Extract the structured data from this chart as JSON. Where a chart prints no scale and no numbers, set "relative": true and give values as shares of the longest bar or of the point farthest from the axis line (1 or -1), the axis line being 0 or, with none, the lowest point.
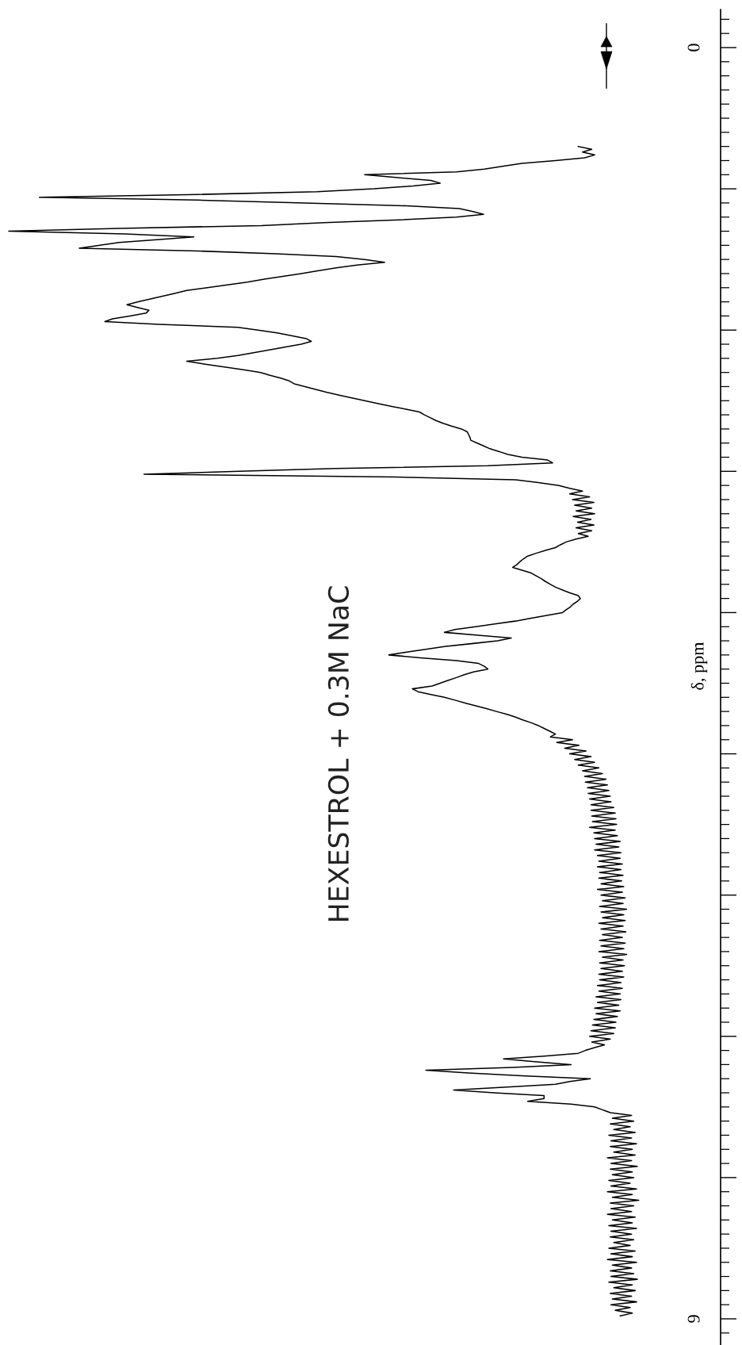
{
  "chart_data": {
    "type": "line",
    "title": "HEXESTROL + 0.3M NaC",
    "ylabel": "δ, ppm",
    "orientation": "horizontal",
    "relative": true,
    "line_style": "solid",
    "tick_labels": "y",
    "categories": [
      "0",
      null,
      null,
      null,
      null,
      null,
      null,
      null,
      null,
      null,
      null,
      null,
      null,
      null,
      null,
      null,
      null,
      null,
      null,
      null,
      null,
      null,
      null,
      null,
      null,
      null,
      null,
      null,
      null,
      null,
      null,
      null,
      null,
      null,
      null,
      null,
      null,
      null,
      null,
      null,
      null,
      null,
      null,
      null,
      null,
      null,
      null,
      null,
      null,
      null,
      null,
      null,
      null,
      null,
      null,
      null,
      null,
      null,
      null,
      null,
      null,
      null,
      null,
      null,
      null,
      null,
      null,
      null,
      null,
      null,
      null,
      null,
      null,
      null,
      null,
      null,
      null,
      null,
      null,
      null,
      null,
      null,
      null,
      null,
      null,
      null,
      null,
      null,
      null,
      null,
      null,
      null,
      null,
      null,
      null,
      null,
      null,
      null,
      null,
      null,
      null,
      null,
      null,
      null,
      null,
      null,
      null,
      null,
      null,
      null,
      null,
      null,
      null,
      null,
      null,
      null,
      null,
      null,
      null,
      null,
      null,
      null,
      null,
      null,
      null,
      null,
      null,
      null,
      null,
      null,
      null,
      null,
      null,
      null,
      null,
      null,
      null,
      null,
      null,
      null,
      null,
      null,
      null,
      null,
      null,
      null,
      null,
      null,
      null,
      null,
      null,
      null,
      null,
      null,
      null,
      null,
      null,
      null,
      null,
      null,
      null,
      null,
      null,
      null,
      null,
      null,
      null,
      null,
      null,
      null,
      null,
      null,
      null,
      null,
      null,
      null,
      null,
      null,
      null,
      null,
      null,
      null,
      null,
      null,
      null,
      null,
      null,
      null,
      null,
      null,
      null,
      null,
      null,
      null,
      null,
      null,
      null,
      null,
      null,
      null,
      null,
      null,
      null,
      null,
      null,
      null,
      null,
      null,
      null,
      null,
      null,
      null,
      null,
      null,
      null,
      null,
      null,
      null,
      null,
      null,
      null,
      null,
      null,
      null,
      null,
      null,
      null,
      null,
      null,
      null,
      null,
      null,
      null,
      null,
      null,
      null,
      null,
      null,
      null,
      null,
      null,
      null,
      null,
      null,
      null,
      null,
      null,
      null,
      null,
      null,
      null,
      null,
      null,
      null,
      null,
      null,
      null,
      null,
      null,
      null,
      null,
      null,
      null,
      null,
      null,
      null,
      null,
      null,
      null,
      null,
      null,
      null,
      null,
      null,
      null,
      null,
      null,
      null,
      null,
      null,
      null,
      null,
      null,
      null,
      null,
      null,
      null,
      null,
      null,
      null,
      null,
      null,
      null,
      null,
      null,
      null,
      null,
      null,
      null,
      null,
      null,
      null,
      null,
      null,
      null,
      null,
      null,
      null,
      null,
      null,
      null,
      null,
      null,
      null,
      null,
      null,
      null,
      null,
      null,
      null,
      null,
      null,
      null,
      null,
      null,
      null,
      null,
      null,
      null,
      null,
      null,
      null,
      null,
      null,
      null,
      null,
      null,
      null,
      null,
      null,
      null,
      null,
      null,
      null,
      null,
      null,
      null,
      null,
      null,
      null,
      null,
      null,
      null,
      null,
      null,
      null,
      null,
      null,
      null,
      null,
      null,
      null,
      null,
      null,
      null,
      null,
      null,
      null,
      null,
      null,
      null,
      null,
      null,
      null,
      null,
      null,
      null,
      null,
      null,
      null,
      null,
      null,
      null,
      null,
      null,
      null,
      null,
      null,
      null,
      null,
      null,
      null,
      null,
      null,
      null,
      null,
      null,
      null,
      null,
      null,
      null,
      null,
      null,
      null,
      null,
      null,
      null,
      null,
      null,
      null,
      null,
      null,
      null,
      null,
      null,
      null,
      null,
      null,
      null,
      null,
      null,
      null,
      null,
      null,
      null,
      null,
      null,
      null,
      null,
      null,
      null,
      null,
      null,
      null,
      null,
      null,
      null,
      null,
      null,
      null,
      null,
      null,
      null,
      null,
      null,
      null,
      null,
      null,
      null,
      null,
      "9"
    ],
    "series": [
      {
        "color": "#000000",
        "values": [
          null,
          null,
          null,
          null,
          null,
          null,
          null,
          null,
          null,
          null,
          null,
          null,
          null,
          null,
          null,
          null,
          null,
          null,
          null,
          null,
          null,
          null,
          null,
          null,
          null,
          null,
          null,
          null,
          null,
          null,
          null,
          null,
          null,
          null,
          null,
          -0.2,
          -0.181,
          -0.194,
          -0.177,
          -0.191,
          -0.232,
          -0.279,
          -0.305,
          -0.332,
          -0.371,
          -0.5,
          -0.456,
          -0.407,
          -0.394,
          -0.432,
          -0.487,
          -0.567,
          -0.734,
          -0.957,
          -0.734,
          -0.584,
          -0.442,
          -0.367,
          -0.349,
          -0.333,
          -0.371,
          -0.451,
          -0.557,
          -0.645,
          -0.845,
          -1.0,
          -0.836,
          -0.74,
          -0.792,
          -0.845,
          -0.872,
          -0.901,
          -0.734,
          -0.624,
          -0.54,
          -0.5,
          -0.472,
          -0.511,
          -0.54,
          -0.566,
          -0.589,
          -0.615,
          -0.641,
          -0.665,
          -0.693,
          -0.721,
          -0.75,
          -0.767,
          -0.784,
          -0.801,
          -0.818,
          -0.834,
          -0.819,
          -0.803,
          -0.807,
          -0.83,
          -0.854,
          -0.865,
          -0.789,
          -0.678,
          -0.65,
          -0.623,
          -0.603,
          -0.582,
          -0.575,
          -0.589,
          -0.611,
          -0.634,
          -0.656,
          -0.678,
          -0.707,
          -0.75,
          -0.726,
          -0.699,
          -0.672,
          -0.646,
          -0.633,
          -0.618,
          -0.606,
          -0.599,
          -0.584,
          -0.569,
          -0.554,
          -0.536,
          -0.518,
          -0.5,
          -0.482,
          -0.462,
          -0.442,
          -0.423,
          -0.416,
          -0.408,
          -0.4,
          -0.39,
          -0.378,
          -0.364,
          -0.356,
          -0.354,
          -0.352,
          -0.351,
          -0.342,
          -0.333,
          -0.324,
          -0.311,
          -0.299,
          -0.279,
          -0.243,
          -0.236,
          -0.327,
          -0.542,
          -0.676,
          -0.81,
          -0.456,
          -0.288,
          -0.256,
          -0.227,
          -0.212,
          -0.194,
          -0.212,
          -0.184,
          -0.208,
          -0.178,
          -0.205,
          -0.181,
          -0.203,
          -0.177,
          -0.207,
          -0.182,
          -0.201,
          -0.178,
          -0.203,
          -0.181,
          -0.2,
          -0.186,
          -0.203,
          -0.217,
          -0.225,
          -0.232,
          -0.246,
          -0.259,
          -0.271,
          -0.277,
          -0.282,
          -0.286,
          -0.292,
          -0.279,
          -0.266,
          -0.259,
          -0.252,
          -0.246,
          -0.239,
          -0.232,
          -0.222,
          -0.212,
          -0.2,
          -0.197,
          -0.201,
          -0.207,
          -0.211,
          -0.217,
          -0.222,
          -0.244,
          -0.266,
          -0.288,
          -0.317,
          -0.344,
          -0.373,
          -0.388,
          -0.341,
          -0.294,
          -0.313,
          -0.35,
          -0.388,
          -0.414,
          -0.441,
          -0.466,
          -0.422,
          -0.371,
          -0.34,
          -0.332,
          -0.327,
          -0.347,
          -0.36,
          -0.371,
          -0.383,
          -0.394,
          -0.405,
          -0.433,
          -0.425,
          -0.407,
          -0.388,
          -0.373,
          -0.359,
          -0.344,
          -0.329,
          -0.315,
          -0.3,
          -0.288,
          -0.278,
          -0.266,
          -0.256,
          -0.248,
          -0.24,
          -0.232,
          -0.239,
          -0.208,
          -0.23,
          -0.199,
          -0.219,
          -0.189,
          -0.212,
          -0.182,
          -0.205,
          -0.177,
          -0.2,
          -0.171,
          -0.194,
          -0.166,
          -0.191,
          -0.161,
          -0.19,
          -0.159,
          -0.187,
          -0.157,
          -0.186,
          -0.155,
          -0.184,
          -0.154,
          -0.182,
          -0.15,
          -0.182,
          -0.148,
          -0.181,
          -0.147,
          -0.18,
          -0.146,
          -0.184,
          -0.148,
          -0.178,
          -0.145,
          -0.177,
          -0.141,
          -0.175,
          -0.143,
          -0.177,
          -0.14,
          -0.173,
          -0.141,
          -0.171,
          -0.138,
          -0.173,
          -0.14,
          -0.17,
          -0.137,
          -0.171,
          -0.139,
          -0.168,
          -0.136,
          -0.173,
          -0.138,
          -0.168,
          -0.134,
          -0.166,
          -0.137,
          -0.17,
          -0.132,
          -0.168,
          -0.136,
          -0.166,
          -0.134,
          -0.171,
          -0.137,
          -0.168,
          -0.133,
          -0.166,
          -0.138,
          -0.17,
          -0.134,
          -0.168,
          -0.136,
          -0.171,
          -0.132,
          -0.166,
          -0.137,
          -0.17,
          -0.135,
          -0.168,
          -0.138,
          -0.171,
          -0.136,
          -0.17,
          -0.14,
          -0.173,
          -0.138,
          -0.171,
          -0.141,
          -0.175,
          -0.14,
          -0.173,
          -0.143,
          -0.177,
          -0.141,
          -0.175,
          -0.145,
          -0.178,
          -0.147,
          -0.18,
          -0.148,
          -0.182,
          -0.15,
          -0.184,
          -0.155,
          -0.181,
          -0.163,
          -0.177,
          -0.19,
          -0.2,
          -0.248,
          -0.305,
          -0.261,
          -0.21,
          -0.292,
          -0.414,
          -0.354,
          -0.274,
          -0.183,
          -0.212,
          -0.232,
          -0.305,
          -0.375,
          -0.318,
          -0.248,
          -0.248,
          -0.271,
          -0.21,
          -0.177,
          -0.166,
          -0.155,
          -0.125,
          -0.152,
          -0.122,
          -0.155,
          -0.127,
          -0.15,
          -0.12,
          -0.157,
          -0.125,
          -0.154,
          -0.118,
          -0.155,
          -0.124,
          -0.15,
          -0.12,
          -0.159,
          -0.125,
          -0.154,
          -0.117,
          -0.155,
          -0.124,
          -0.152,
          -0.122,
          -0.157,
          -0.127,
          -0.154,
          -0.118,
          -0.159,
          -0.124,
          -0.152,
          -0.115,
          -0.155,
          -0.122,
          -0.154,
          -0.125,
          -0.159,
          -0.12,
          -0.152,
          -0.124,
          -0.157,
          -0.118,
          -0.154,
          -0.125,
          -0.155,
          -0.122,
          -0.15,
          -0.127,
          -0.157,
          -0.12,
          -0.154,
          -0.124,
          -0.159,
          -0.118,
          -0.152,
          -0.125,
          -0.155,
          -0.122,
          -0.154,
          -0.117,
          -0.157,
          -0.124,
          -0.15,
          -0.12,
          -0.155,
          -0.125,
          -0.152,
          -0.118,
          -0.154,
          -0.127,
          -0.148,
          -0.124,
          -0.141,
          null
        ]
      }
    ]
  }
}
